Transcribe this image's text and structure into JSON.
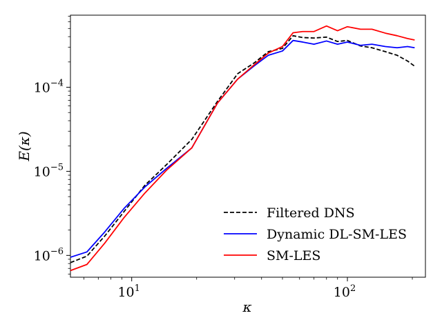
{
  "chart_data": {
    "type": "line",
    "title": "",
    "xlabel": "κ",
    "ylabel": "E(κ)",
    "xscale": "log",
    "yscale": "log",
    "xlim": [
      5.2,
      230
    ],
    "ylim": [
      5.5e-07,
      0.00072
    ],
    "grid": false,
    "legend_position": "lower-right",
    "x_ticks": [
      {
        "value": 10,
        "base": "10",
        "exp": "1"
      },
      {
        "value": 100,
        "base": "10",
        "exp": "2"
      }
    ],
    "y_ticks": [
      {
        "value": 1e-06,
        "base": "10",
        "exp": "−6"
      },
      {
        "value": 1e-05,
        "base": "10",
        "exp": "−5"
      },
      {
        "value": 0.0001,
        "base": "10",
        "exp": "−4"
      }
    ],
    "series": [
      {
        "name": "Filtered DNS",
        "color": "#000000",
        "style": "dashed",
        "x": [
          5.2,
          6.2,
          7.5,
          9.2,
          11.5,
          14.5,
          19,
          25,
          31,
          37,
          43,
          50,
          56,
          62,
          70,
          80,
          90,
          100,
          115,
          130,
          150,
          170,
          190,
          205
        ],
        "y": [
          8.2e-07,
          9.8e-07,
          1.7e-06,
          3.3e-06,
          6.8e-06,
          1.2e-05,
          2.4e-05,
          6.8e-05,
          0.000145,
          0.000195,
          0.000265,
          0.00029,
          0.00041,
          0.00039,
          0.000385,
          0.000395,
          0.00035,
          0.00036,
          0.00031,
          0.000295,
          0.000265,
          0.00024,
          0.000205,
          0.000178
        ]
      },
      {
        "name": "Dynamic DL-SM-LES",
        "color": "#0000ff",
        "style": "solid",
        "x": [
          5.2,
          6.2,
          7.5,
          9.2,
          11.5,
          14.5,
          19,
          25,
          31,
          37,
          43,
          50,
          56,
          62,
          70,
          80,
          90,
          100,
          115,
          130,
          150,
          170,
          190,
          205
        ],
        "y": [
          9.5e-07,
          1.1e-06,
          1.9e-06,
          3.6e-06,
          6.5e-06,
          1.08e-05,
          1.9e-05,
          6.5e-05,
          0.000125,
          0.00018,
          0.00024,
          0.00027,
          0.00036,
          0.000345,
          0.000325,
          0.000355,
          0.000325,
          0.000345,
          0.000315,
          0.000325,
          0.000305,
          0.000295,
          0.000305,
          0.000295
        ]
      },
      {
        "name": "SM-LES",
        "color": "#ff0000",
        "style": "solid",
        "x": [
          5.2,
          6.2,
          7.5,
          9.2,
          11.5,
          14.5,
          19,
          25,
          31,
          37,
          43,
          50,
          56,
          62,
          70,
          80,
          90,
          100,
          115,
          130,
          150,
          170,
          190,
          205
        ],
        "y": [
          6.6e-07,
          7.8e-07,
          1.4e-06,
          2.8e-06,
          5.5e-06,
          1.03e-05,
          1.9e-05,
          6.5e-05,
          0.000125,
          0.000185,
          0.000255,
          0.000305,
          0.000445,
          0.00046,
          0.00046,
          0.000535,
          0.00047,
          0.000525,
          0.00049,
          0.00049,
          0.00044,
          0.00041,
          0.00038,
          0.000365
        ]
      }
    ]
  }
}
